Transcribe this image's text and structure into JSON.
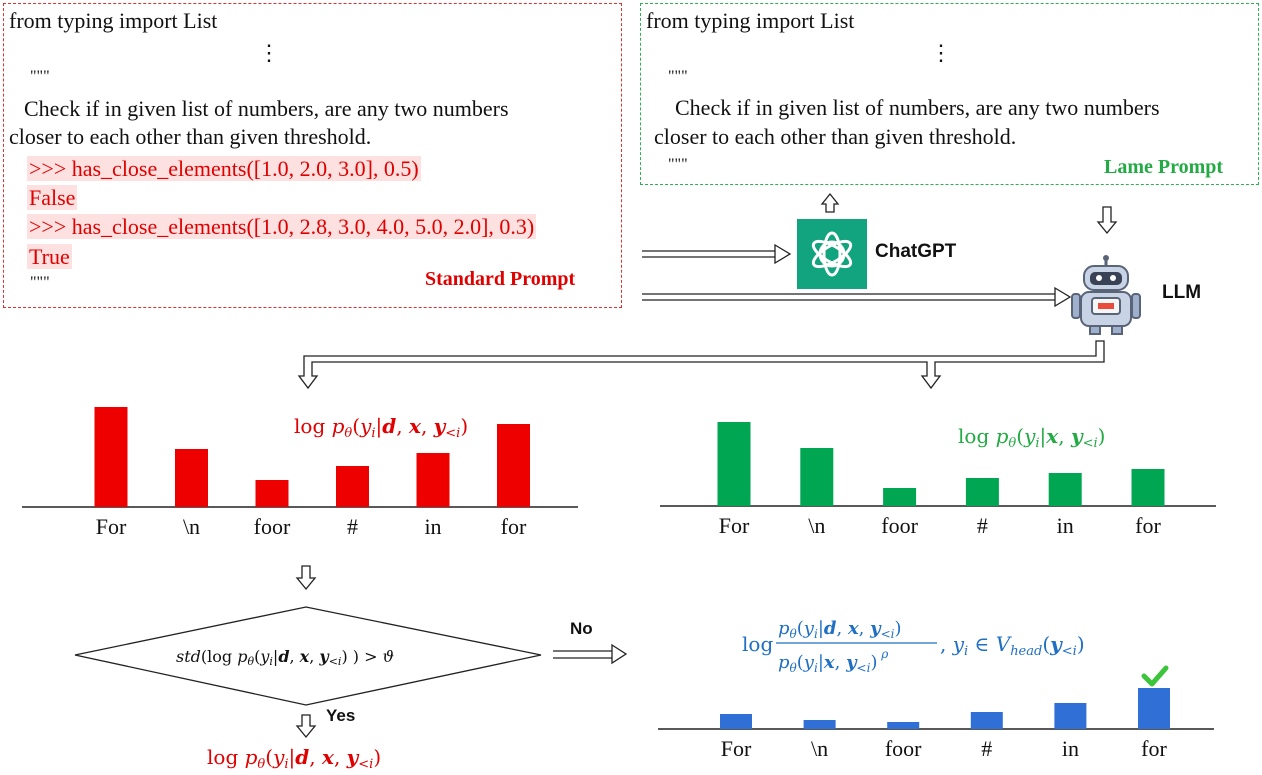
{
  "standard_prompt": {
    "line1": "from typing import List",
    "ellipsis": "⋮",
    "docquote_open": "\"\"\"",
    "desc_line1": "Check if in given list of numbers, are any two numbers",
    "desc_line2": "closer to each other than given threshold.",
    "ex1": ">>> has_close_elements([1.0, 2.0, 3.0], 0.5)",
    "ex1_out": "False",
    "ex2": ">>> has_close_elements([1.0, 2.8, 3.0, 4.0, 5.0, 2.0], 0.3)",
    "ex2_out": "True",
    "docquote_close": "\"\"\"",
    "title": "Standard Prompt",
    "color": "#e00000"
  },
  "lame_prompt": {
    "line1": "from typing import List",
    "ellipsis": "⋮",
    "docquote_open": "\"\"\"",
    "desc_line1": "Check if in given list of numbers, are any two numbers",
    "desc_line2": "closer to each other than given threshold.",
    "docquote_close": "\"\"\"",
    "title": "Lame Prompt",
    "color": "#22aa44"
  },
  "chatgpt_label": "ChatGPT",
  "llm_label": "LLM",
  "flow": {
    "no_label": "No",
    "yes_label": "Yes"
  },
  "formulas": {
    "standard": "log p_θ(y_i | d, x, y_<i)",
    "lame": "log p_θ(y_i | x, y_<i)",
    "condition": "std(log p_θ(y_i | d, x, y_<i)) > ϑ",
    "contrast": "log p_θ(y_i|d,x,y_<i) / p_θ(y_i|x,y_<i)^ρ , y_i ∈ V_head(y_<i)",
    "yes_result": "log p_θ(y_i | d, x, y_<i)"
  },
  "chart_data": [
    {
      "type": "bar",
      "categories": [
        "For",
        "\\n",
        "foor",
        "#",
        "in",
        "for"
      ],
      "values": [
        100,
        58,
        27,
        41,
        54,
        83
      ],
      "color": "#ee0000"
    },
    {
      "type": "bar",
      "categories": [
        "For",
        "\\n",
        "foor",
        "#",
        "in",
        "for"
      ],
      "values": [
        84,
        58,
        18,
        28,
        33,
        37
      ],
      "color": "#00a651"
    },
    {
      "type": "bar",
      "categories": [
        "For",
        "\\n",
        "foor",
        "#",
        "in",
        "for"
      ],
      "values": [
        15,
        9,
        7,
        17,
        26,
        41
      ],
      "color": "#2f6fd6",
      "highlight_category": "for"
    }
  ]
}
